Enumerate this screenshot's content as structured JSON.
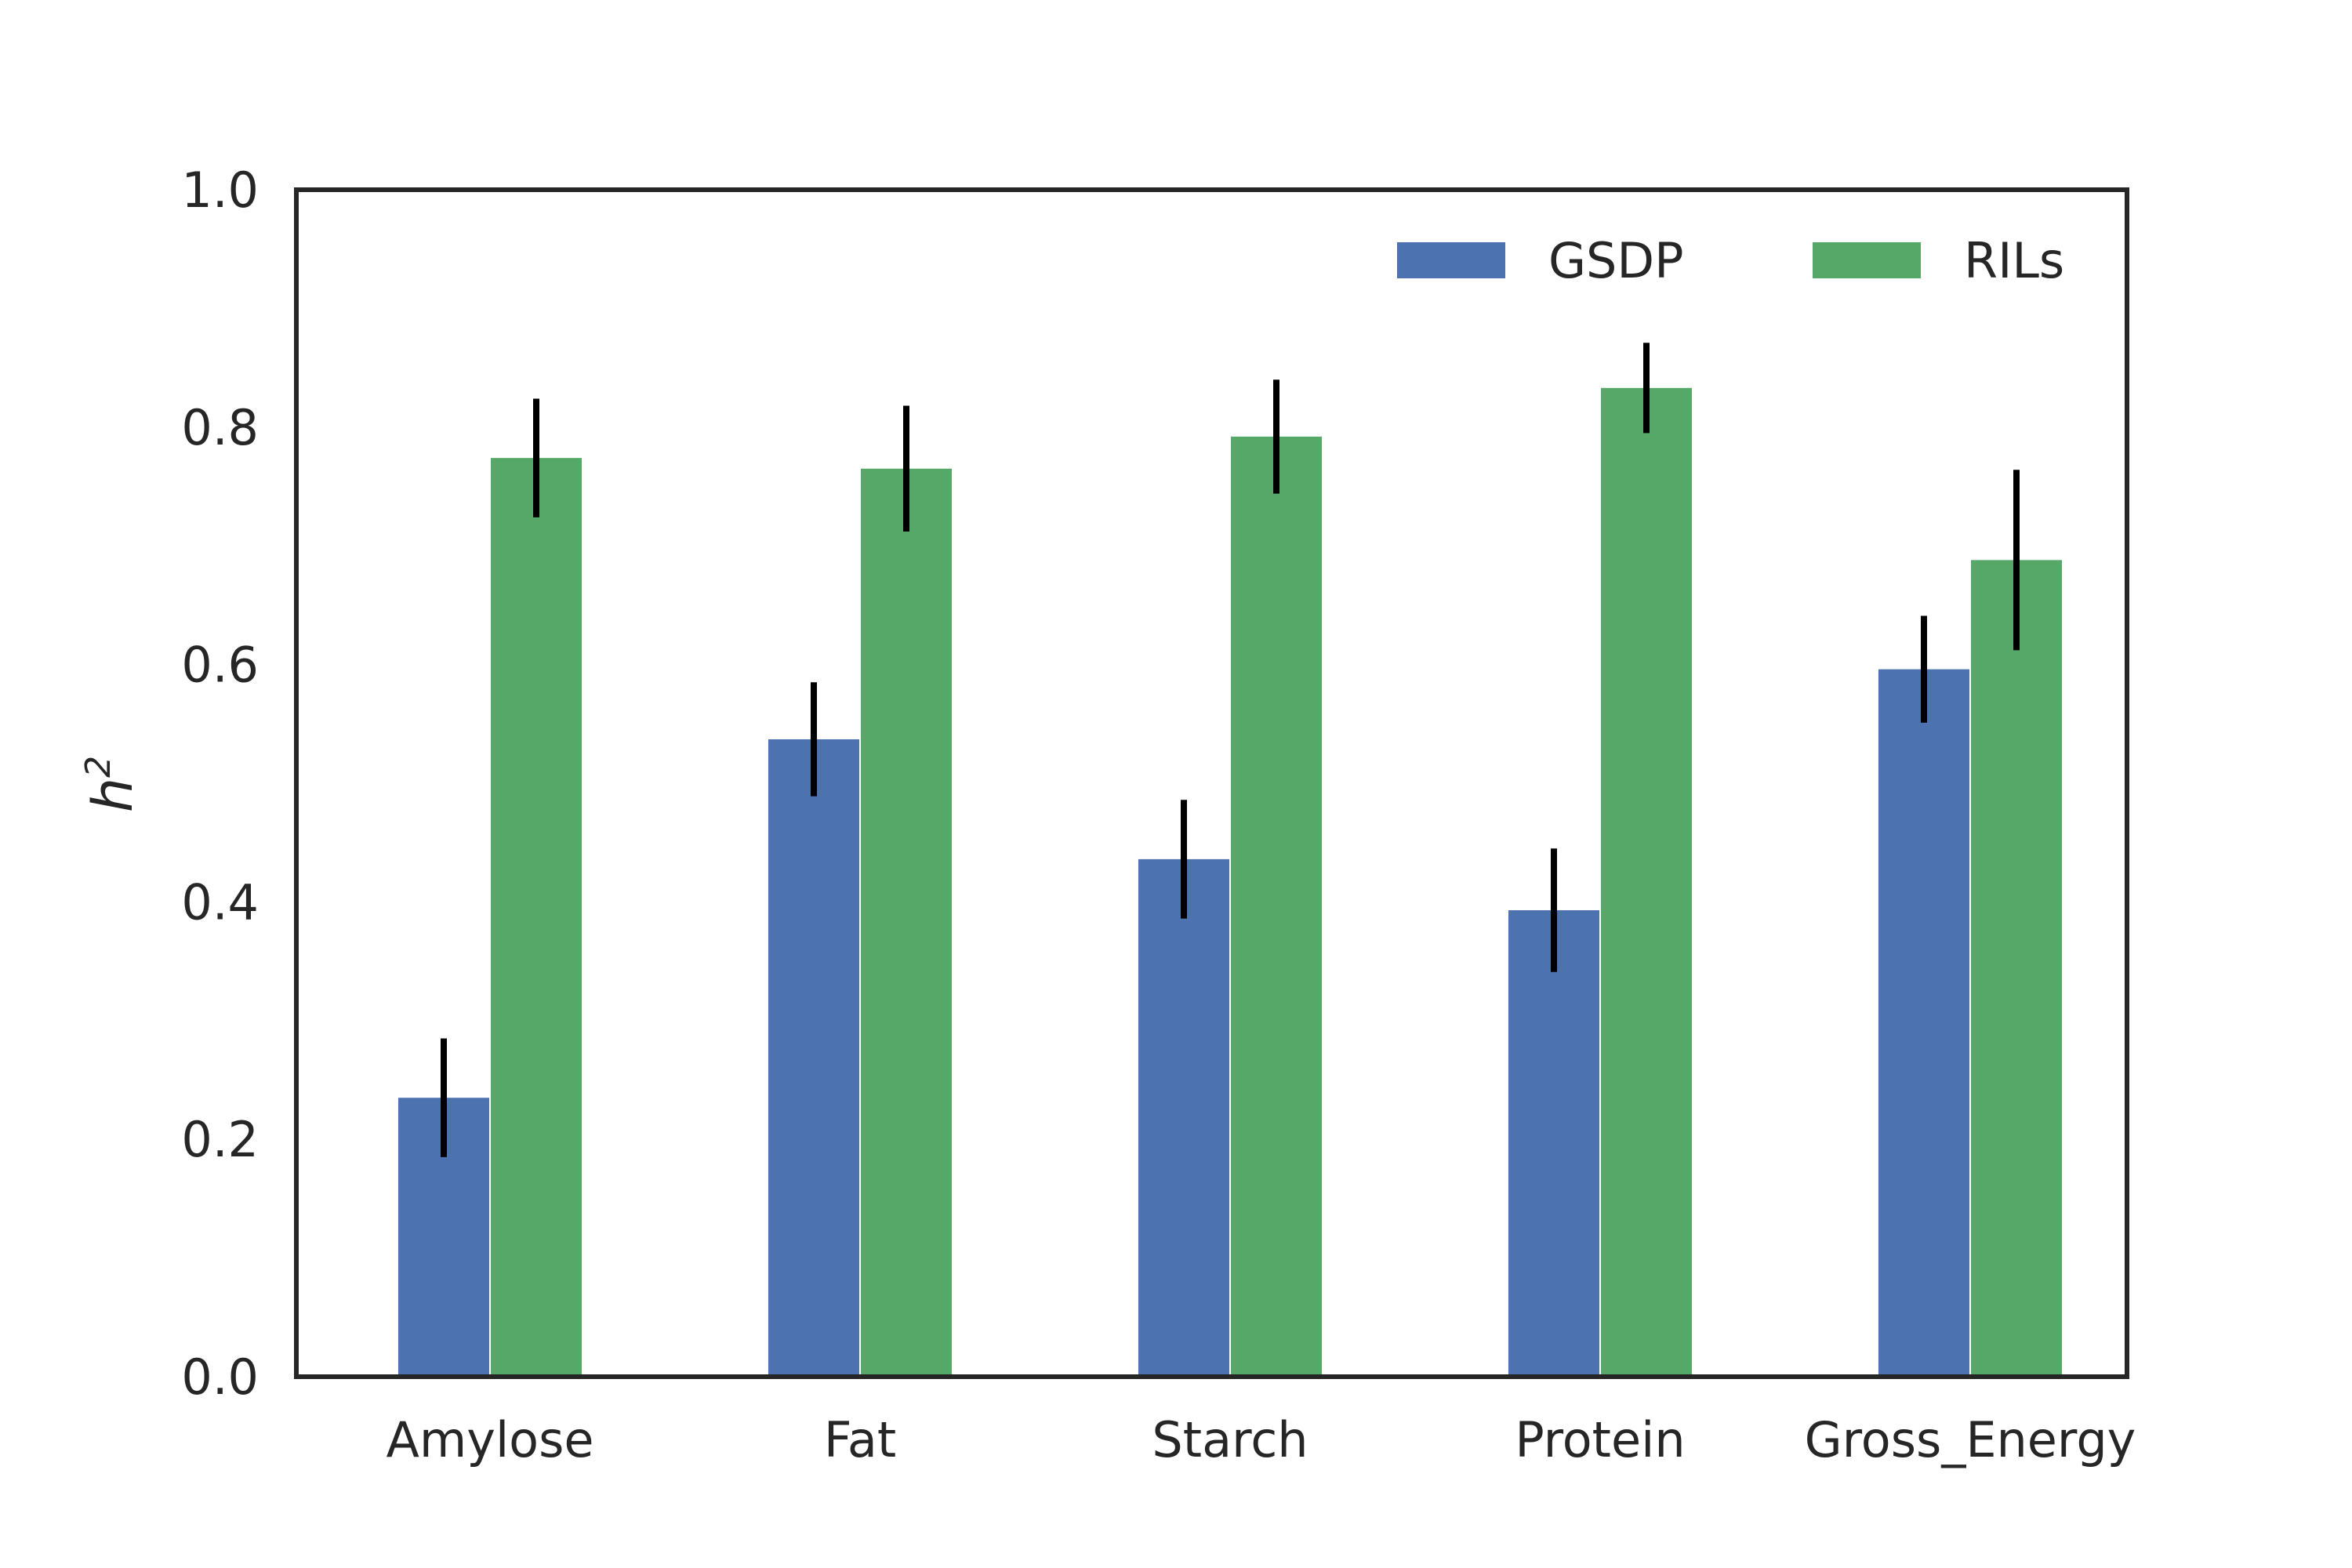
{
  "chart_data": {
    "type": "bar",
    "title": "",
    "xlabel": "",
    "ylabel": "h",
    "ylabel_superscript": "2",
    "ylim": [
      0,
      1.0
    ],
    "yticks": [
      "0.0",
      "0.2",
      "0.4",
      "0.6",
      "0.8",
      "1.0"
    ],
    "categories": [
      "Amylose",
      "Fat",
      "Starch",
      "Protein",
      "Gross_Energy"
    ],
    "series": [
      {
        "name": "GSDP",
        "color": "#4c72b0",
        "values": [
          0.235,
          0.537,
          0.436,
          0.393,
          0.596
        ],
        "errors": [
          0.05,
          0.048,
          0.05,
          0.052,
          0.045
        ]
      },
      {
        "name": "RILs",
        "color": "#55a868",
        "values": [
          0.774,
          0.765,
          0.792,
          0.833,
          0.688
        ],
        "errors": [
          0.05,
          0.053,
          0.048,
          0.038,
          0.076
        ]
      }
    ],
    "legend_position": "top-right",
    "grid": false
  }
}
